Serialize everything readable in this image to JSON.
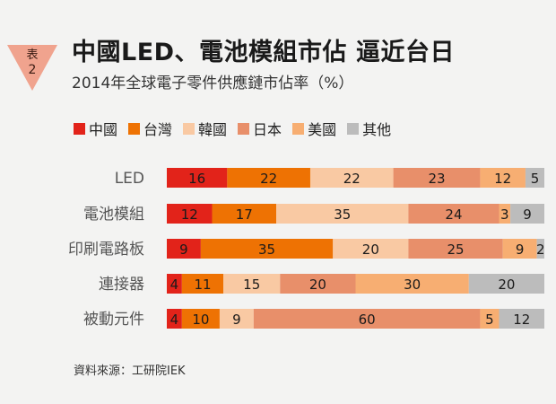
{
  "badge": {
    "line1": "表",
    "line2": "2",
    "color": "#f0a38e"
  },
  "title": "中國LED、電池模組市佔  逼近台日",
  "subtitle": "2014年全球電子零件供應鏈市佔率（%）",
  "source": "資料來源：工研院IEK",
  "chart_data": {
    "type": "bar",
    "orientation": "horizontal",
    "stacked": true,
    "title": "中國LED、電池模組市佔  逼近台日",
    "subtitle": "2014年全球電子零件供應鏈市佔率（%）",
    "legend_position": "top",
    "categories": [
      "LED",
      "電池模組",
      "印刷電路板",
      "連接器",
      "被動元件"
    ],
    "series": [
      {
        "name": "中國",
        "color": "#e2231a",
        "values": [
          16,
          12,
          9,
          4,
          4
        ]
      },
      {
        "name": "台灣",
        "color": "#ee7203",
        "values": [
          22,
          17,
          35,
          11,
          10
        ]
      },
      {
        "name": "韓國",
        "color": "#f9c9a3",
        "values": [
          22,
          35,
          20,
          15,
          9
        ]
      },
      {
        "name": "日本",
        "color": "#e88f6a",
        "values": [
          23,
          24,
          25,
          20,
          60
        ]
      },
      {
        "name": "美國",
        "color": "#f7ae72",
        "values": [
          12,
          3,
          9,
          30,
          5
        ]
      },
      {
        "name": "其他",
        "color": "#bcbcbc",
        "values": [
          5,
          9,
          2,
          20,
          12
        ]
      }
    ]
  }
}
